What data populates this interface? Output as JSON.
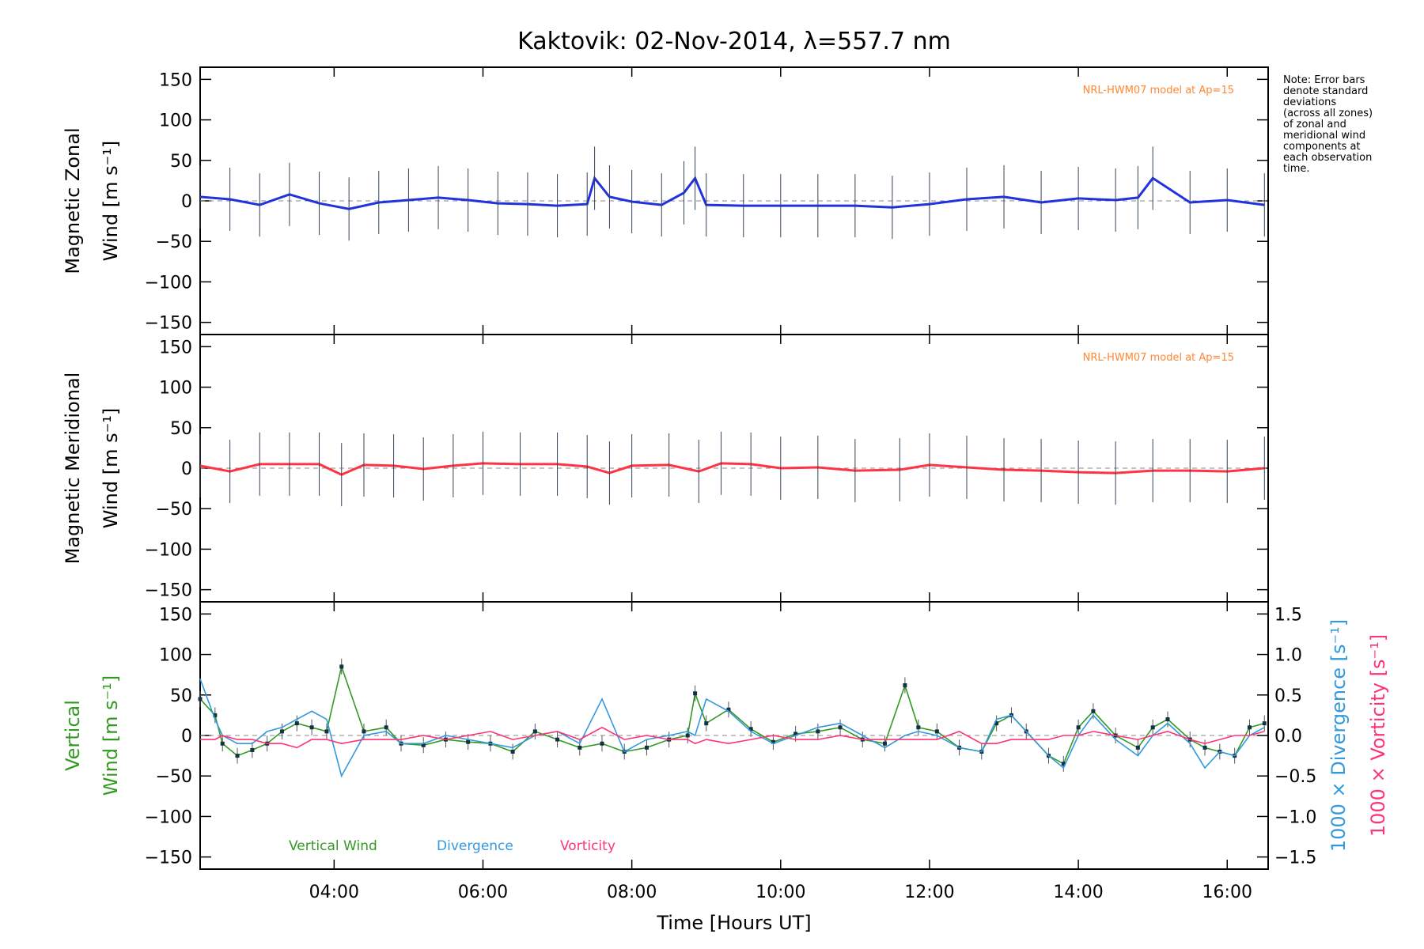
{
  "chart_data": [
    {
      "type": "line",
      "panel": "zonal",
      "title": "Kaktovik: 02-Nov-2014, λ=557.7 nm",
      "ylabel": "Magnetic Zonal",
      "ylabel2": "Wind [m s⁻¹]",
      "ylim": [
        -165,
        165
      ],
      "yticks": [
        150,
        100,
        50,
        0,
        -50,
        -100,
        -150
      ],
      "ytick_labels": [
        "150",
        "100",
        "50",
        "0",
        "−50",
        "−100",
        "−150"
      ],
      "model_label": "NRL-HWM07 model at Ap=15",
      "x": [
        2.2,
        2.6,
        3.0,
        3.4,
        3.8,
        4.2,
        4.6,
        5.0,
        5.4,
        5.8,
        6.2,
        6.6,
        7.0,
        7.4,
        7.5,
        7.7,
        8.0,
        8.4,
        8.7,
        8.85,
        9.0,
        9.5,
        10.0,
        10.5,
        11.0,
        11.5,
        12.0,
        12.5,
        13.0,
        13.5,
        14.0,
        14.5,
        14.8,
        15.0,
        15.5,
        16.0,
        16.5
      ],
      "series": [
        {
          "name": "Zonal Wind",
          "color": "#2233dd",
          "values": [
            5,
            2,
            -5,
            8,
            -3,
            -10,
            -2,
            1,
            4,
            1,
            -3,
            -4,
            -6,
            -4,
            28,
            5,
            -1,
            -5,
            10,
            28,
            -5,
            -6,
            -6,
            -6,
            -6,
            -8,
            -4,
            2,
            5,
            -2,
            3,
            1,
            4,
            28,
            -2,
            1,
            -5
          ]
        }
      ]
    },
    {
      "type": "line",
      "panel": "meridional",
      "ylabel": "Magnetic Meridional",
      "ylabel2": "Wind [m s⁻¹]",
      "ylim": [
        -165,
        165
      ],
      "yticks": [
        150,
        100,
        50,
        0,
        -50,
        -100,
        -150
      ],
      "ytick_labels": [
        "150",
        "100",
        "50",
        "0",
        "−50",
        "−100",
        "−150"
      ],
      "model_label": "NRL-HWM07 model at Ap=15",
      "x": [
        2.2,
        2.6,
        3.0,
        3.4,
        3.8,
        4.1,
        4.4,
        4.8,
        5.2,
        5.6,
        6.0,
        6.5,
        7.0,
        7.4,
        7.7,
        8.0,
        8.5,
        8.9,
        9.2,
        9.6,
        10.0,
        10.5,
        11.0,
        11.6,
        12.0,
        12.5,
        13.0,
        13.5,
        14.0,
        14.5,
        15.0,
        15.5,
        16.0,
        16.5
      ],
      "series": [
        {
          "name": "Meridional Wind",
          "color": "#ff3344",
          "values": [
            3,
            -4,
            5,
            5,
            5,
            -8,
            4,
            3,
            -1,
            3,
            6,
            5,
            5,
            2,
            -6,
            3,
            4,
            -4,
            6,
            5,
            0,
            1,
            -3,
            -2,
            4,
            1,
            -2,
            -3,
            -5,
            -6,
            -3,
            -3,
            -4,
            0
          ]
        }
      ]
    },
    {
      "type": "line",
      "panel": "vertical",
      "ylabel": "Vertical",
      "ylabel2": "Wind [m s⁻¹]",
      "ylim": [
        -165,
        165
      ],
      "yticks": [
        150,
        100,
        50,
        0,
        -50,
        -100,
        -150
      ],
      "ytick_labels": [
        "150",
        "100",
        "50",
        "0",
        "−50",
        "−100",
        "−150"
      ],
      "y2label": "1000 × Divergence [s⁻¹]",
      "y3label": "1000 × Vorticity [s⁻¹]",
      "y2lim": [
        -1.65,
        1.65
      ],
      "y2ticks": [
        1.5,
        1.0,
        0.5,
        0.0,
        -0.5,
        -1.0,
        -1.5
      ],
      "y2tick_labels": [
        "1.5",
        "1.0",
        "0.5",
        "0.0",
        "−0.5",
        "−1.0",
        "−1.5"
      ],
      "xlabel": "Time [Hours UT]",
      "xlim": [
        2.2,
        16.55
      ],
      "xticks": [
        4,
        6,
        8,
        10,
        12,
        14,
        16
      ],
      "xtick_labels": [
        "04:00",
        "06:00",
        "08:00",
        "10:00",
        "12:00",
        "14:00",
        "16:00"
      ],
      "legend": [
        "Vertical Wind",
        "Divergence",
        "Vorticity"
      ],
      "x": [
        2.2,
        2.4,
        2.5,
        2.7,
        2.9,
        3.1,
        3.3,
        3.5,
        3.7,
        3.9,
        4.1,
        4.4,
        4.7,
        4.9,
        5.2,
        5.5,
        5.8,
        6.1,
        6.4,
        6.7,
        7.0,
        7.3,
        7.6,
        7.9,
        8.2,
        8.5,
        8.75,
        8.85,
        9.0,
        9.3,
        9.6,
        9.9,
        10.2,
        10.5,
        10.8,
        11.1,
        11.4,
        11.67,
        11.85,
        12.1,
        12.4,
        12.7,
        12.9,
        13.1,
        13.3,
        13.6,
        13.8,
        14.0,
        14.2,
        14.5,
        14.8,
        15.0,
        15.2,
        15.5,
        15.7,
        15.9,
        16.1,
        16.3,
        16.5
      ],
      "series": [
        {
          "name": "Vertical Wind",
          "color": "#339922",
          "values": [
            45,
            25,
            -10,
            -25,
            -18,
            -10,
            5,
            15,
            10,
            5,
            85,
            5,
            10,
            -10,
            -12,
            -5,
            -8,
            -10,
            -20,
            5,
            -5,
            -15,
            -10,
            -20,
            -15,
            -5,
            0,
            52,
            15,
            32,
            8,
            -8,
            2,
            5,
            10,
            -5,
            -10,
            62,
            10,
            5,
            -15,
            -20,
            15,
            25,
            5,
            -25,
            -35,
            10,
            30,
            0,
            -15,
            10,
            20,
            -5,
            -15,
            -20,
            -25,
            10,
            15
          ]
        },
        {
          "name": "Divergence",
          "color": "#3399dd",
          "y2": true,
          "values": [
            0.7,
            0.2,
            0.0,
            -0.1,
            -0.1,
            0.05,
            0.1,
            0.2,
            0.3,
            0.2,
            -0.5,
            0.0,
            0.05,
            -0.1,
            -0.1,
            0.0,
            -0.05,
            -0.1,
            -0.15,
            0.0,
            0.05,
            -0.1,
            0.45,
            -0.2,
            -0.05,
            0.0,
            0.05,
            0.0,
            0.45,
            0.3,
            0.05,
            -0.1,
            0.0,
            0.1,
            0.15,
            0.0,
            -0.15,
            0.0,
            0.05,
            0.0,
            -0.15,
            -0.2,
            0.2,
            0.25,
            0.05,
            -0.25,
            -0.4,
            0.0,
            0.25,
            -0.05,
            -0.25,
            0.0,
            0.15,
            -0.1,
            -0.4,
            -0.2,
            -0.25,
            0.0,
            0.1
          ]
        },
        {
          "name": "Vorticity",
          "color": "#ff3377",
          "y2": true,
          "values": [
            -0.05,
            -0.05,
            0.0,
            -0.05,
            -0.05,
            -0.1,
            -0.1,
            -0.15,
            -0.05,
            -0.05,
            -0.1,
            -0.05,
            -0.05,
            -0.05,
            0.0,
            -0.05,
            0.0,
            0.05,
            -0.05,
            0.0,
            0.05,
            -0.05,
            0.1,
            -0.05,
            0.0,
            -0.05,
            -0.05,
            -0.1,
            -0.05,
            -0.1,
            -0.05,
            0.0,
            -0.05,
            -0.05,
            0.0,
            -0.05,
            -0.05,
            -0.05,
            -0.05,
            -0.05,
            0.05,
            -0.1,
            -0.1,
            -0.05,
            -0.05,
            -0.05,
            0.0,
            0.0,
            0.05,
            0.0,
            -0.05,
            0.0,
            0.05,
            -0.05,
            -0.1,
            -0.05,
            0.0,
            0.0,
            0.05
          ]
        }
      ]
    }
  ],
  "note": [
    "Note: Error bars",
    "denote standard",
    "deviations",
    "(across all zones)",
    "of zonal and",
    "meridional wind",
    "components at",
    "each observation",
    "time."
  ]
}
